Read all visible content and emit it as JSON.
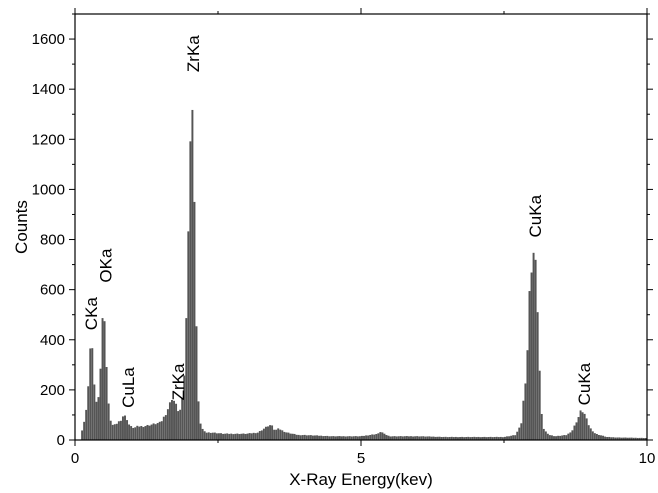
{
  "chart_data": {
    "type": "bar",
    "title": "",
    "xlabel": "X-Ray Energy(kev)",
    "ylabel": "Counts",
    "xlim": [
      0,
      10
    ],
    "ylim": [
      0,
      1700
    ],
    "x_ticks": [
      "0",
      "5",
      "10"
    ],
    "y_ticks": [
      "0",
      "200",
      "400",
      "600",
      "800",
      "1000",
      "1200",
      "1400",
      "1600"
    ],
    "bar_color": "#555555",
    "grid": false,
    "legend": "none",
    "spectrum": {
      "x": [
        0.1,
        0.15,
        0.2,
        0.25,
        0.28,
        0.32,
        0.36,
        0.4,
        0.45,
        0.5,
        0.53,
        0.56,
        0.6,
        0.65,
        0.7,
        0.8,
        0.85,
        0.9,
        0.95,
        1.0,
        1.05,
        1.1,
        1.2,
        1.3,
        1.4,
        1.5,
        1.6,
        1.65,
        1.7,
        1.75,
        1.8,
        1.85,
        1.9,
        1.95,
        2.0,
        2.04,
        2.08,
        2.12,
        2.16,
        2.2,
        2.25,
        2.3,
        2.4,
        2.6,
        2.8,
        3.0,
        3.2,
        3.4,
        3.45,
        3.5,
        3.55,
        3.6,
        3.7,
        3.8,
        3.9,
        4.0,
        4.5,
        5.0,
        5.3,
        5.35,
        5.4,
        5.5,
        6.0,
        6.5,
        7.0,
        7.5,
        7.7,
        7.8,
        7.9,
        7.95,
        8.0,
        8.04,
        8.08,
        8.12,
        8.16,
        8.2,
        8.3,
        8.4,
        8.6,
        8.7,
        8.8,
        8.85,
        8.9,
        8.95,
        9.0,
        9.1,
        9.3,
        9.5,
        10.0
      ],
      "y": [
        20,
        60,
        120,
        280,
        420,
        300,
        150,
        150,
        300,
        570,
        450,
        250,
        100,
        60,
        60,
        80,
        100,
        90,
        60,
        50,
        50,
        55,
        55,
        60,
        65,
        70,
        110,
        140,
        170,
        150,
        120,
        120,
        200,
        500,
        1100,
        1350,
        1150,
        500,
        150,
        60,
        35,
        30,
        30,
        25,
        25,
        25,
        30,
        60,
        55,
        35,
        50,
        40,
        30,
        25,
        20,
        20,
        15,
        15,
        25,
        35,
        25,
        15,
        15,
        12,
        12,
        12,
        20,
        60,
        300,
        600,
        760,
        740,
        600,
        300,
        100,
        40,
        20,
        15,
        20,
        40,
        90,
        120,
        110,
        80,
        50,
        25,
        12,
        10,
        8
      ]
    },
    "peak_labels": [
      {
        "text": "CKa",
        "x": 0.28,
        "y": 430
      },
      {
        "text": "OKa",
        "x": 0.53,
        "y": 620
      },
      {
        "text": "CuLa",
        "x": 0.93,
        "y": 120
      },
      {
        "text": "ZrKa",
        "x": 1.8,
        "y": 150
      },
      {
        "text": "ZrKa",
        "x": 2.06,
        "y": 1460
      },
      {
        "text": "CuKa",
        "x": 8.04,
        "y": 800
      },
      {
        "text": "CuKa",
        "x": 8.9,
        "y": 130
      }
    ]
  }
}
